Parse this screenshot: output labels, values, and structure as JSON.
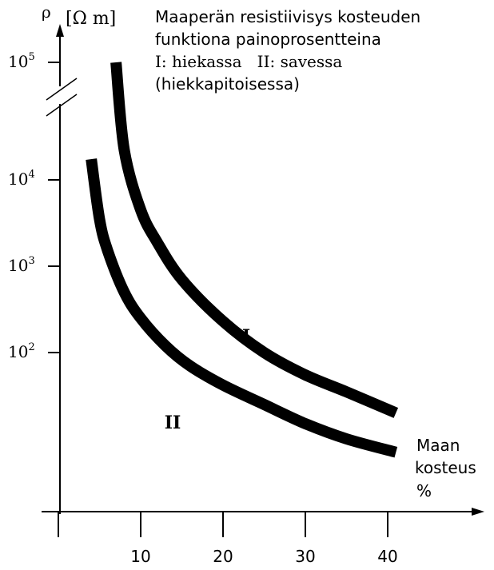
{
  "chart_data": {
    "type": "line",
    "title_lines": [
      "Maaperän resistiivisys kosteuden",
      "funktiona painoprosentteina",
      "I: hiekassa   II: savessa",
      "(hiekkapitoisessa)"
    ],
    "ylabel_symbol": "ρ",
    "ylabel_unit": "[Ω m]",
    "xlabel_lines": [
      "Maan",
      "kosteus",
      "%"
    ],
    "x_ticks": [
      10,
      20,
      30,
      40
    ],
    "y_ticks": [
      {
        "value": 100,
        "base": "10",
        "exp": "2"
      },
      {
        "value": 1000,
        "base": "10",
        "exp": "3"
      },
      {
        "value": 10000,
        "base": "10",
        "exp": "4"
      },
      {
        "value": 100000,
        "base": "10",
        "exp": "5"
      }
    ],
    "y_scale": "log",
    "axis_break": true,
    "xlim": [
      0,
      42
    ],
    "series": [
      {
        "name": "I",
        "x": [
          7,
          8,
          10,
          12,
          15,
          20,
          25,
          30,
          35,
          41
        ],
        "y": [
          100000,
          18000,
          4500,
          1900,
          700,
          230,
          100,
          55,
          35,
          20
        ]
      },
      {
        "name": "II",
        "x": [
          4,
          5,
          6,
          8,
          10,
          13,
          16,
          20,
          25,
          30,
          35,
          41
        ],
        "y": [
          15000,
          3500,
          1500,
          500,
          250,
          120,
          70,
          42,
          25,
          15,
          10,
          7
        ]
      }
    ]
  }
}
